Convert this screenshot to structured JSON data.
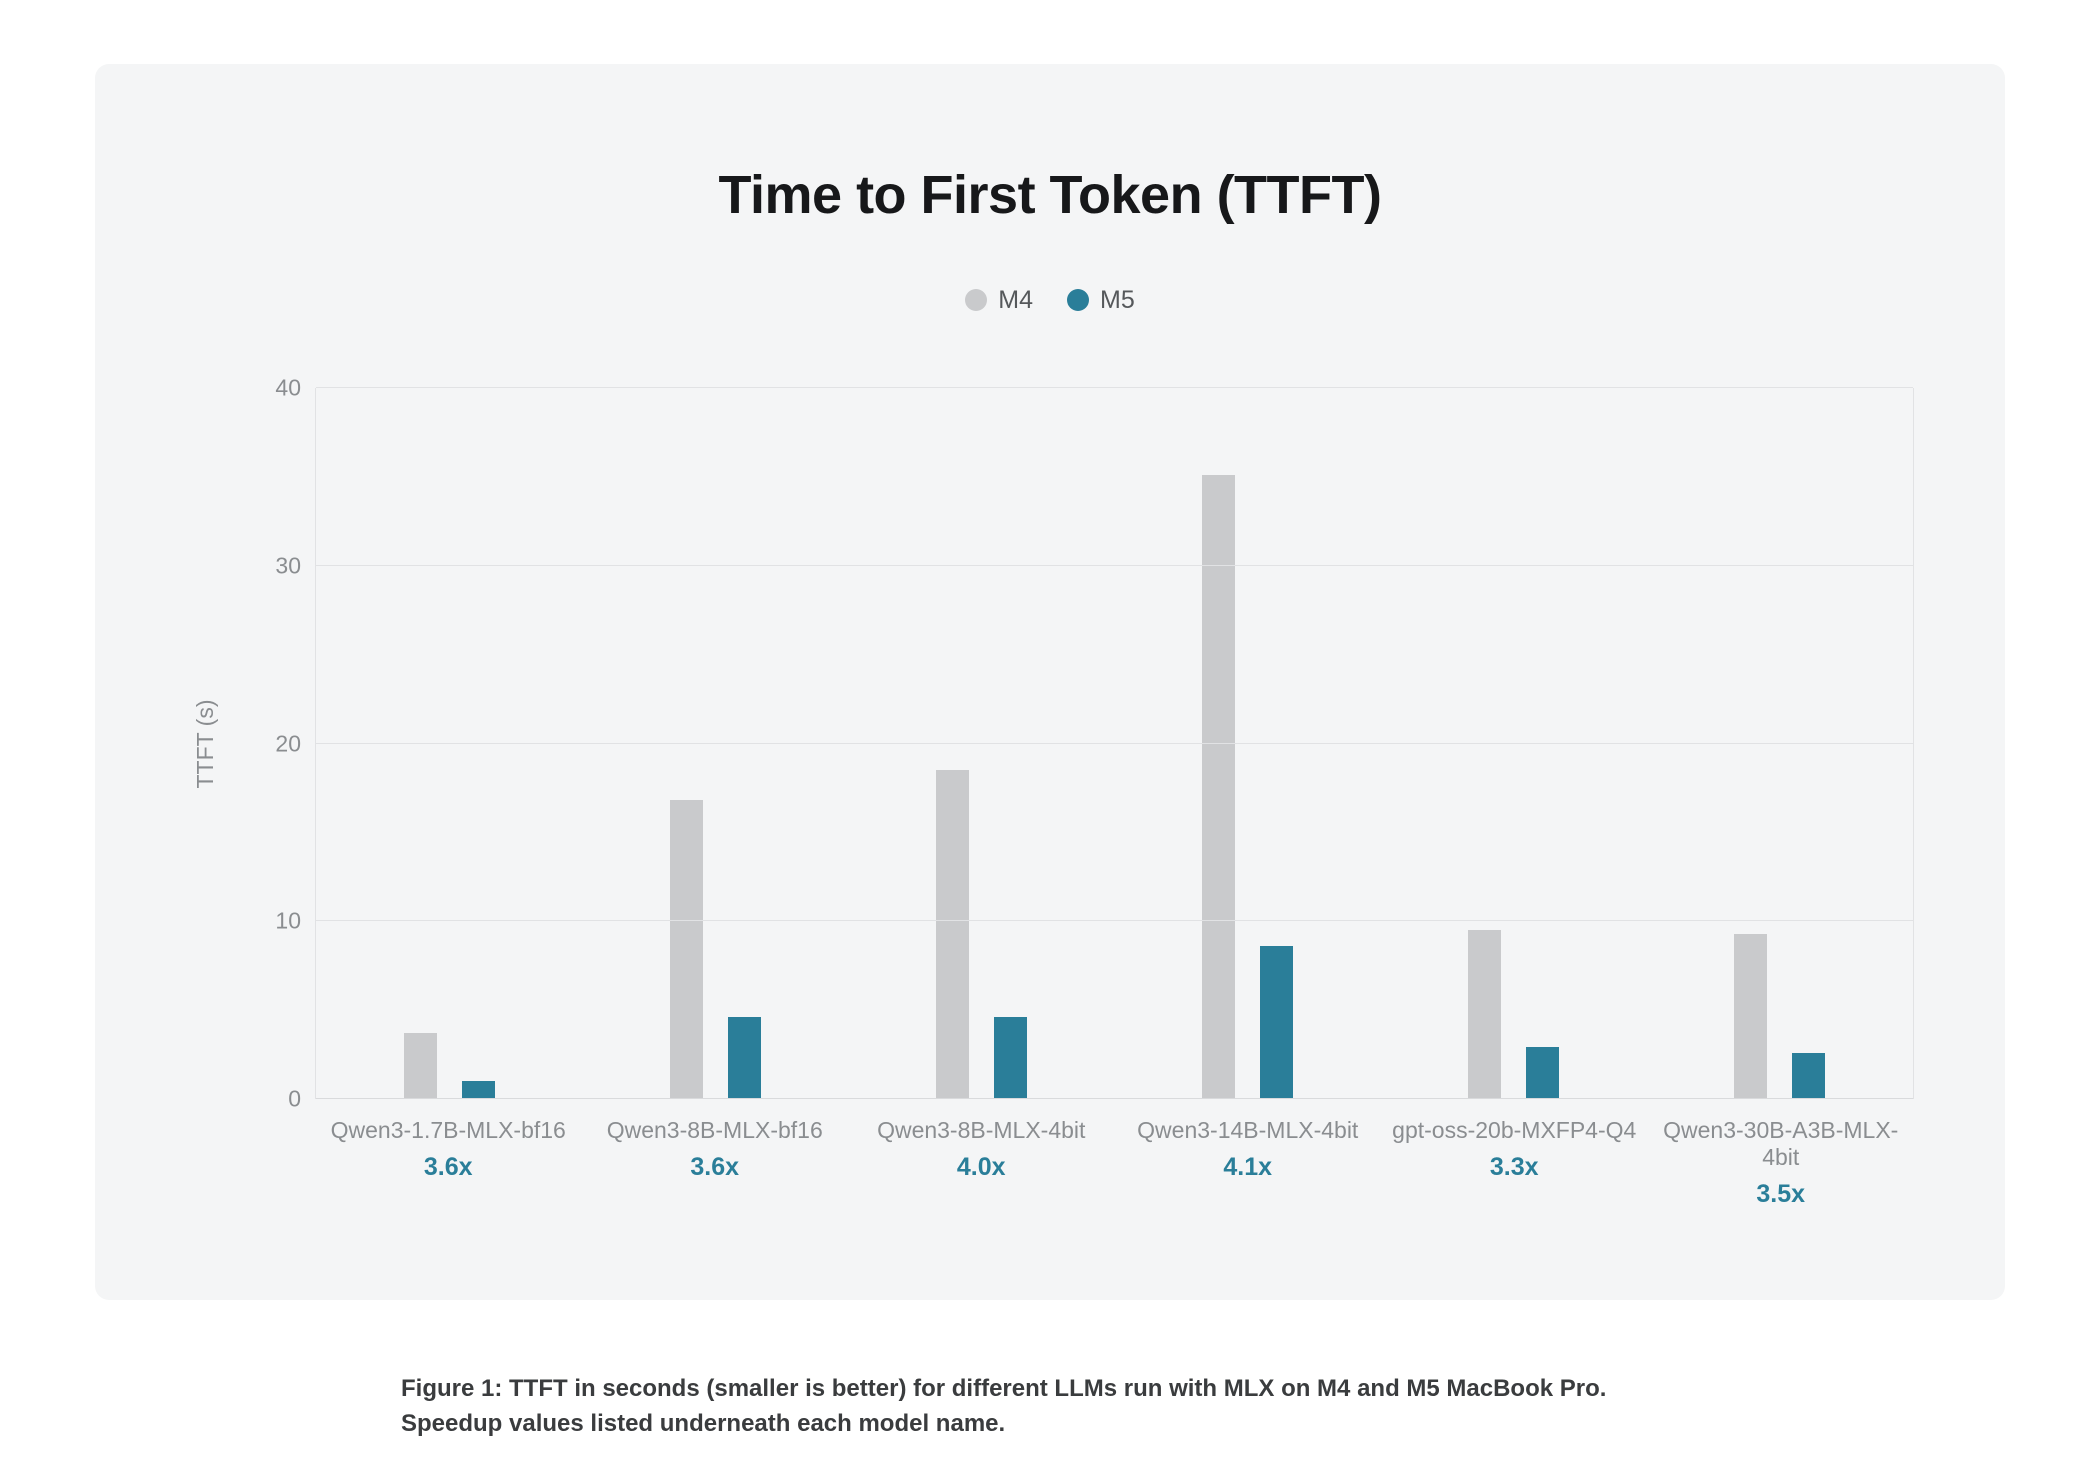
{
  "chart_data": {
    "type": "bar",
    "title": "Time to First Token (TTFT)",
    "ylabel": "TTFT (s)",
    "ylim": [
      0,
      40
    ],
    "yticks": [
      0,
      10,
      20,
      30,
      40
    ],
    "grid": true,
    "legend_position": "top-center",
    "categories": [
      "Qwen3-1.7B-MLX-bf16",
      "Qwen3-8B-MLX-bf16",
      "Qwen3-8B-MLX-4bit",
      "Qwen3-14B-MLX-4bit",
      "gpt-oss-20b-MXFP4-Q4",
      "Qwen3-30B-A3B-MLX-4bit"
    ],
    "speedups": [
      "3.6x",
      "3.6x",
      "4.0x",
      "4.1x",
      "3.3x",
      "3.5x"
    ],
    "series": [
      {
        "name": "M4",
        "color": "#c9cacc",
        "values": [
          3.7,
          16.8,
          18.5,
          35.1,
          9.5,
          9.3
        ]
      },
      {
        "name": "M5",
        "color": "#2a7e99",
        "values": [
          1.0,
          4.6,
          4.6,
          8.6,
          2.9,
          2.6
        ]
      }
    ],
    "colors": {
      "m4": "#c9cacc",
      "m5": "#2a7e99",
      "speedup_text": "#2a7e99"
    }
  },
  "caption": "Figure 1: TTFT in seconds (smaller is better) for different LLMs run with MLX on M4 and M5 MacBook Pro. Speedup values listed underneath each model name."
}
